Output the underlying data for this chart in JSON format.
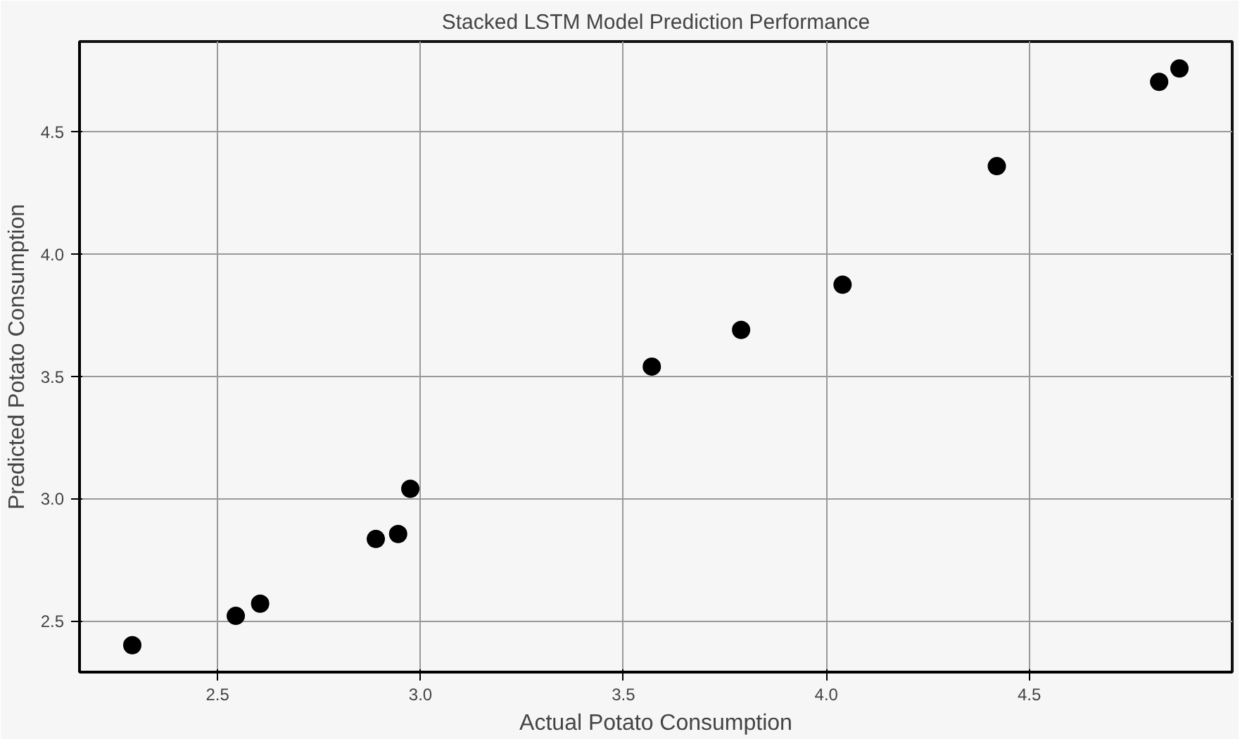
{
  "chart_data": {
    "type": "scatter",
    "title": "Stacked LSTM Model Prediction Performance",
    "xlabel": "Actual Potato Consumption",
    "ylabel": "Predicted Potato Consumption",
    "x": [
      2.29,
      2.545,
      2.605,
      2.89,
      2.945,
      2.975,
      3.57,
      3.79,
      4.04,
      4.42,
      4.82,
      4.87
    ],
    "series": [
      {
        "color": "#000000",
        "values": [
          2.4,
          2.52,
          2.57,
          2.835,
          2.855,
          3.04,
          3.54,
          3.69,
          3.875,
          4.36,
          4.705,
          4.76
        ]
      }
    ],
    "xlim": [
      2.16,
      5.0
    ],
    "ylim": [
      2.29,
      4.87
    ],
    "xticks": [
      2.5,
      {
        "value": 3,
        "label": "3.0"
      },
      3.5,
      {
        "value": 4,
        "label": "4.0"
      },
      4.5
    ],
    "yticks": [
      2.5,
      {
        "value": 3,
        "label": "3.0"
      },
      3.5,
      {
        "value": 4,
        "label": "4.0"
      },
      4.5
    ],
    "grid": true,
    "marker": "circle"
  }
}
